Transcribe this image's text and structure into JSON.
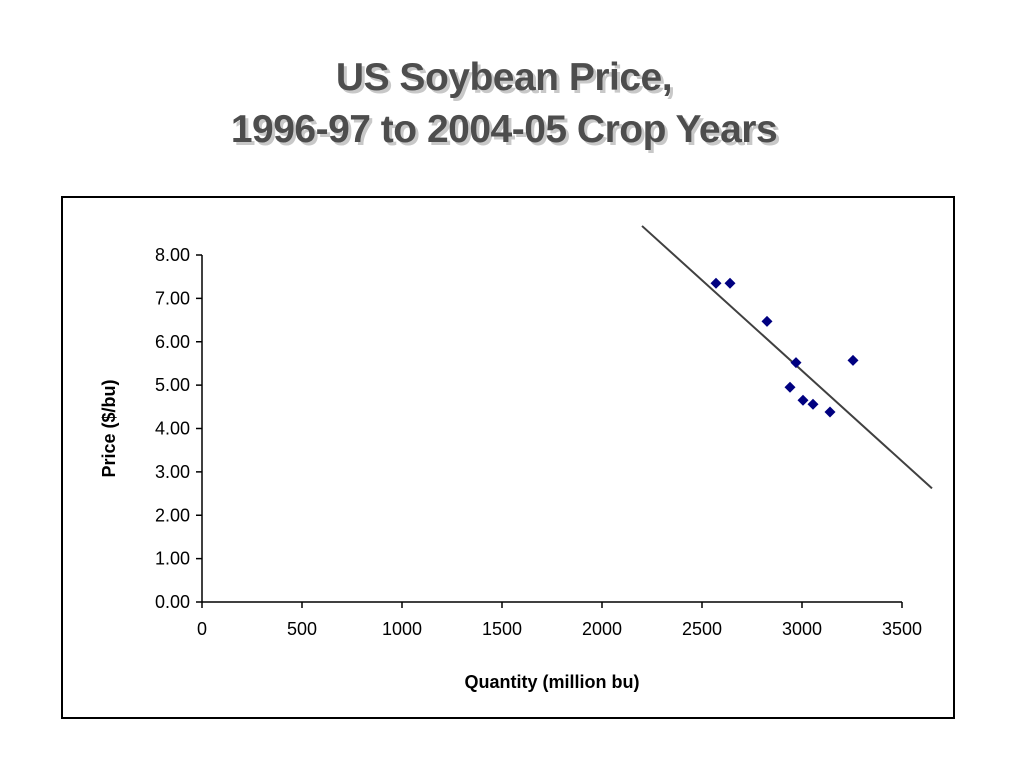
{
  "slide": {
    "title_line1": "US Soybean Price,",
    "title_line2": "1996-97 to 2004-05 Crop Years"
  },
  "chart_data": {
    "type": "scatter",
    "title": "",
    "xlabel": "Quantity (million bu)",
    "ylabel": "Price ($/bu)",
    "xlim": [
      0,
      3500
    ],
    "ylim": [
      0,
      8
    ],
    "x_ticks": [
      "0",
      "500",
      "1000",
      "1500",
      "2000",
      "2500",
      "3000",
      "3500"
    ],
    "y_ticks": [
      "0.00",
      "1.00",
      "2.00",
      "3.00",
      "4.00",
      "5.00",
      "6.00",
      "7.00",
      "8.00"
    ],
    "grid": false,
    "legend": "none",
    "marker": "diamond",
    "series": [
      {
        "points": [
          {
            "x": 2570,
            "y": 7.35
          },
          {
            "x": 2640,
            "y": 7.35
          },
          {
            "x": 2825,
            "y": 6.47
          },
          {
            "x": 2970,
            "y": 5.52
          },
          {
            "x": 3255,
            "y": 5.57
          },
          {
            "x": 2940,
            "y": 4.95
          },
          {
            "x": 3005,
            "y": 4.65
          },
          {
            "x": 3055,
            "y": 4.56
          },
          {
            "x": 3140,
            "y": 4.38
          }
        ]
      }
    ],
    "trendline": {
      "type": "linear",
      "x_start": 2200,
      "y_start": 8.67,
      "x_end": 3650,
      "y_end": 2.62
    },
    "colors": {
      "marker": "#000080",
      "trendline": "#404040",
      "axis": "#000000"
    }
  }
}
